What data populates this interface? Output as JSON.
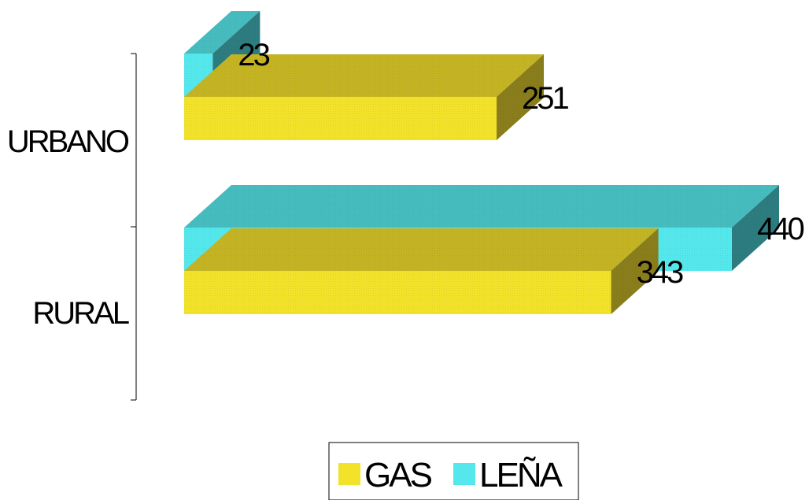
{
  "chart_data": {
    "type": "bar",
    "orientation": "horizontal",
    "style": "3d",
    "categories": [
      "URBANO",
      "RURAL"
    ],
    "series": [
      {
        "name": "GAS",
        "values": [
          251,
          343
        ],
        "color": "#f2e22a",
        "side_color": "#8a7d1c",
        "top_color": "#c4b424"
      },
      {
        "name": "LEÑA",
        "values": [
          23,
          440
        ],
        "color": "#54e8ec",
        "side_color": "#2d7c7f",
        "top_color": "#47bcbf"
      }
    ],
    "xlim": [
      0,
      440
    ],
    "grid": false,
    "legend": {
      "position": "bottom",
      "items": [
        "GAS",
        "LEÑA"
      ]
    }
  }
}
